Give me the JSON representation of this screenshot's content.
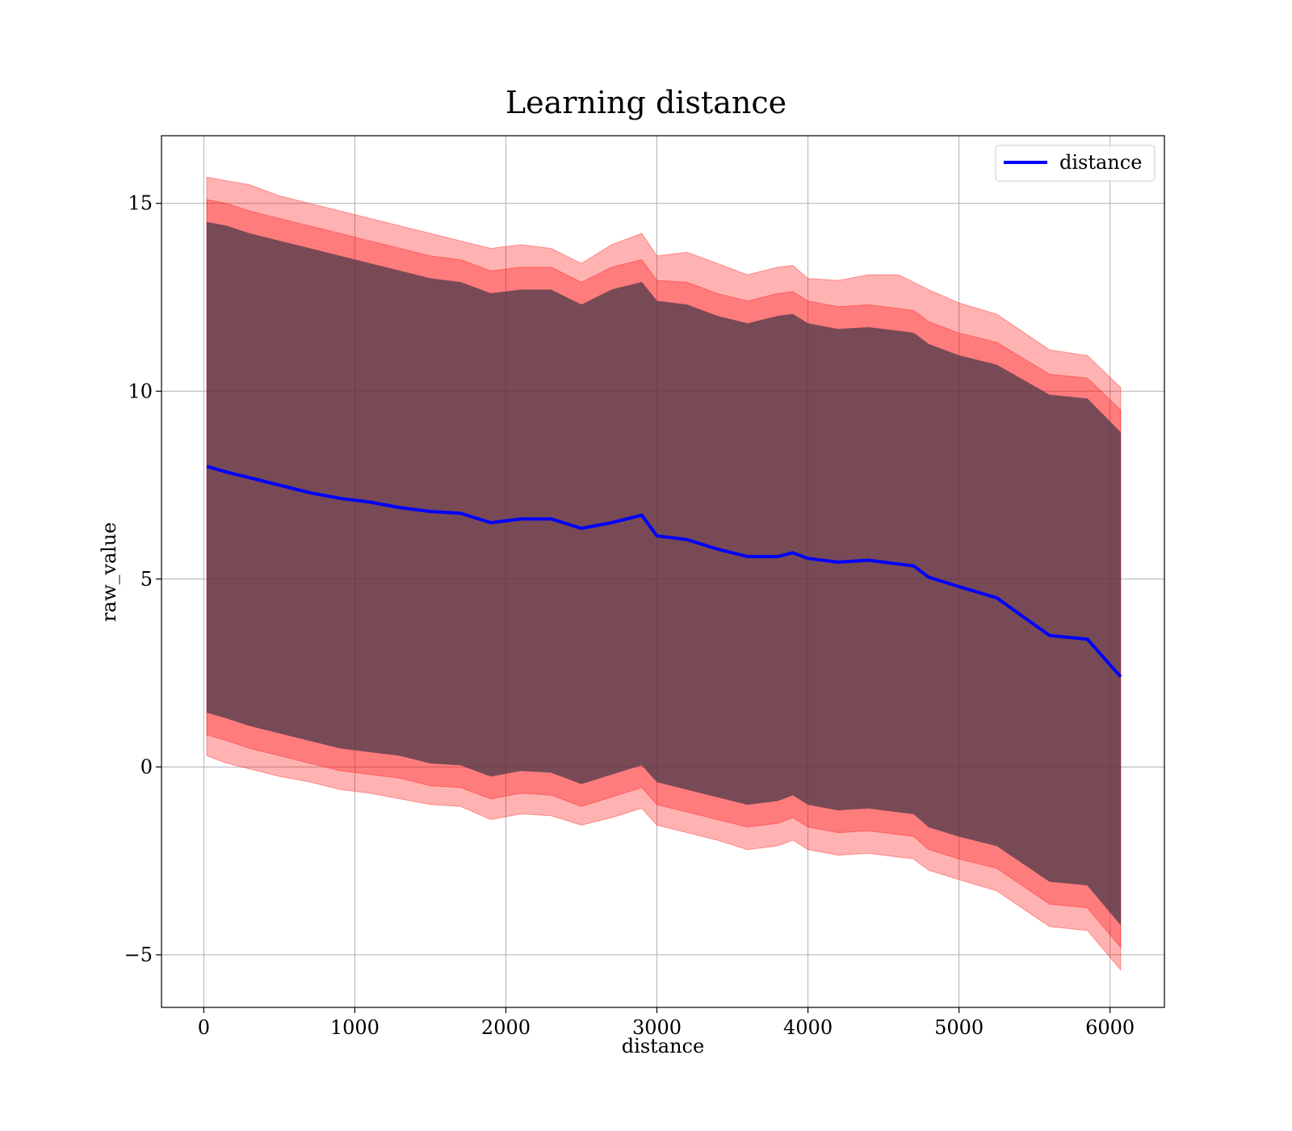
{
  "chart_data": {
    "type": "line",
    "title": "Learning distance",
    "xlabel": "distance",
    "ylabel": "raw_value",
    "xlim": [
      -280,
      6360
    ],
    "ylim": [
      -6.4,
      16.8
    ],
    "xticks": [
      0,
      1000,
      2000,
      3000,
      4000,
      5000,
      6000
    ],
    "xtick_labels": [
      "0",
      "1000",
      "2000",
      "3000",
      "4000",
      "5000",
      "6000"
    ],
    "yticks": [
      -5,
      0,
      5,
      10,
      15
    ],
    "ytick_labels": [
      "−5",
      "0",
      "5",
      "10",
      "15"
    ],
    "grid": true,
    "legend": {
      "position": "top-right",
      "entries": [
        "distance"
      ]
    },
    "colors": {
      "line": "#0000ff",
      "band": "#ff0000",
      "inner": "#4b3a4a",
      "grid": "#b0b0b0"
    },
    "series": [
      {
        "name": "distance",
        "x": [
          20,
          150,
          300,
          500,
          700,
          900,
          1100,
          1300,
          1500,
          1700,
          1900,
          2100,
          2300,
          2500,
          2700,
          2900,
          3000,
          3200,
          3400,
          3600,
          3800,
          3900,
          4000,
          4200,
          4400,
          4600,
          4700,
          4800,
          5000,
          5250,
          5600,
          5850,
          6070
        ],
        "y": [
          8.0,
          7.85,
          7.7,
          7.5,
          7.3,
          7.15,
          7.05,
          6.9,
          6.8,
          6.75,
          6.5,
          6.6,
          6.6,
          6.35,
          6.5,
          6.7,
          6.15,
          6.05,
          5.8,
          5.6,
          5.6,
          5.7,
          5.55,
          5.45,
          5.5,
          5.4,
          5.35,
          5.05,
          4.8,
          4.5,
          3.5,
          3.4,
          2.4
        ]
      }
    ],
    "bands": [
      {
        "name": "outer",
        "opacity": 0.3,
        "upper": [
          15.7,
          15.6,
          15.5,
          15.2,
          15.0,
          14.8,
          14.6,
          14.4,
          14.2,
          14.0,
          13.8,
          13.9,
          13.8,
          13.4,
          13.9,
          14.2,
          13.6,
          13.7,
          13.4,
          13.1,
          13.3,
          13.35,
          13.0,
          12.95,
          13.1,
          13.1,
          12.9,
          12.7,
          12.35,
          12.05,
          11.1,
          10.95,
          10.1
        ],
        "lower": [
          0.3,
          0.1,
          -0.05,
          -0.25,
          -0.4,
          -0.6,
          -0.7,
          -0.85,
          -1.0,
          -1.05,
          -1.4,
          -1.25,
          -1.3,
          -1.55,
          -1.35,
          -1.1,
          -1.55,
          -1.75,
          -1.95,
          -2.2,
          -2.1,
          -1.95,
          -2.2,
          -2.35,
          -2.3,
          -2.4,
          -2.45,
          -2.75,
          -3.0,
          -3.3,
          -4.25,
          -4.35,
          -5.4
        ]
      },
      {
        "name": "middle",
        "opacity": 0.3,
        "upper": [
          15.1,
          15.0,
          14.8,
          14.6,
          14.4,
          14.2,
          14.0,
          13.8,
          13.6,
          13.5,
          13.2,
          13.3,
          13.3,
          12.9,
          13.3,
          13.5,
          12.95,
          12.9,
          12.6,
          12.4,
          12.6,
          12.65,
          12.4,
          12.25,
          12.3,
          12.2,
          12.15,
          11.85,
          11.55,
          11.3,
          10.45,
          10.35,
          9.5
        ],
        "lower": [
          0.85,
          0.7,
          0.5,
          0.3,
          0.1,
          -0.1,
          -0.2,
          -0.3,
          -0.5,
          -0.55,
          -0.85,
          -0.7,
          -0.75,
          -1.05,
          -0.8,
          -0.55,
          -1.0,
          -1.2,
          -1.4,
          -1.6,
          -1.5,
          -1.35,
          -1.6,
          -1.75,
          -1.7,
          -1.8,
          -1.85,
          -2.2,
          -2.45,
          -2.7,
          -3.65,
          -3.75,
          -4.8
        ]
      },
      {
        "name": "inner",
        "opacity": 0.75,
        "upper": [
          14.5,
          14.4,
          14.2,
          14.0,
          13.8,
          13.6,
          13.4,
          13.2,
          13.0,
          12.9,
          12.6,
          12.7,
          12.7,
          12.3,
          12.7,
          12.9,
          12.4,
          12.3,
          12.0,
          11.8,
          12.0,
          12.05,
          11.8,
          11.65,
          11.7,
          11.6,
          11.55,
          11.25,
          10.95,
          10.7,
          9.9,
          9.8,
          8.9
        ],
        "lower": [
          1.45,
          1.3,
          1.1,
          0.9,
          0.7,
          0.5,
          0.4,
          0.3,
          0.1,
          0.05,
          -0.25,
          -0.1,
          -0.15,
          -0.45,
          -0.2,
          0.05,
          -0.4,
          -0.6,
          -0.8,
          -1.0,
          -0.9,
          -0.75,
          -1.0,
          -1.15,
          -1.1,
          -1.2,
          -1.25,
          -1.6,
          -1.85,
          -2.1,
          -3.05,
          -3.15,
          -4.2
        ]
      }
    ]
  }
}
